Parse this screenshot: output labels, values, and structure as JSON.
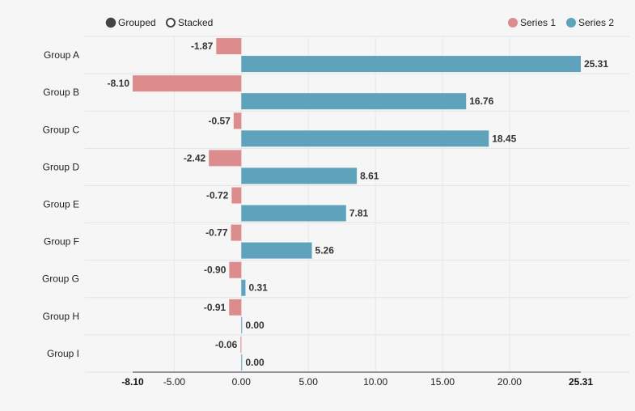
{
  "controls": {
    "grouped_label": "Grouped",
    "stacked_label": "Stacked",
    "selected": "Grouped"
  },
  "legend": {
    "placement": "top-right",
    "items": [
      {
        "name": "Series 1",
        "color": "#dc8c8c"
      },
      {
        "name": "Series 2",
        "color": "#5fa2bc"
      }
    ]
  },
  "chart_data": {
    "type": "bar",
    "orientation": "horizontal",
    "mode": "grouped",
    "categories": [
      "Group A",
      "Group B",
      "Group C",
      "Group D",
      "Group E",
      "Group F",
      "Group G",
      "Group H",
      "Group I"
    ],
    "series": [
      {
        "name": "Series 1",
        "color": "#dc8c8c",
        "values": [
          -1.87,
          -8.1,
          -0.57,
          -2.42,
          -0.72,
          -0.77,
          -0.9,
          -0.91,
          -0.06
        ]
      },
      {
        "name": "Series 2",
        "color": "#5fa2bc",
        "values": [
          25.31,
          16.76,
          18.45,
          8.61,
          7.81,
          5.26,
          0.31,
          0.0,
          0.0
        ]
      }
    ],
    "value_labels_series1": [
      "-1.87",
      "-8.10",
      "-0.57",
      "-2.42",
      "-0.72",
      "-0.77",
      "-0.90",
      "-0.91",
      "-0.06"
    ],
    "value_labels_series2": [
      "25.31",
      "16.76",
      "18.45",
      "8.61",
      "7.81",
      "5.26",
      "0.31",
      "0.00",
      "0.00"
    ],
    "xlim": [
      -8.1,
      25.31
    ],
    "x_ticks": [
      -5,
      0,
      5,
      10,
      15,
      20
    ],
    "x_tick_labels": [
      "-5.00",
      "0.00",
      "5.00",
      "10.00",
      "15.00",
      "20.00"
    ],
    "x_min_label": "-8.10",
    "x_max_label": "25.31",
    "grid": true
  }
}
